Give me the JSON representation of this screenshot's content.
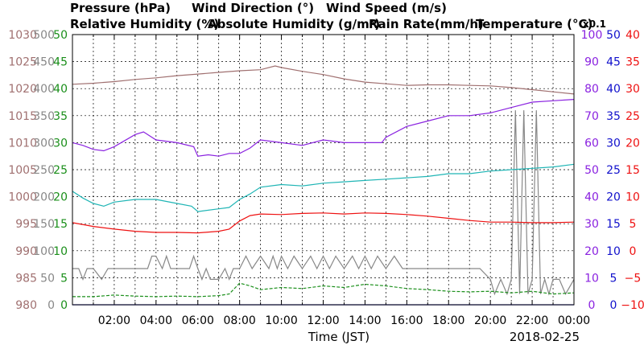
{
  "legend": {
    "pressure": "Pressure (hPa)",
    "wind_direction": "Wind Direction (°)",
    "wind_speed": "Wind Speed (m/s)",
    "relative_humidity": "Relative Humidity (%)",
    "absolute_humidity": "Absolute Humidity (g/m³)",
    "rain_rate": "Rain Rate(mm/h)",
    "temperature": "Temperature (°C)",
    "abs_humidity_scale": "x0.1"
  },
  "colors": {
    "pressure": "#a07070",
    "wind_direction": "#888888",
    "wind_speed": "#1a8f1a",
    "relative_humidity": "#8a22e0",
    "absolute_humidity": "#1fb5b5",
    "rain_rate": "#1111cc",
    "temperature": "#ee1111"
  },
  "chart_data": {
    "type": "line",
    "xlabel": "Time (JST)",
    "date": "2018-02-25",
    "x_ticks": [
      "02:00",
      "04:00",
      "06:00",
      "08:00",
      "10:00",
      "12:00",
      "14:00",
      "16:00",
      "18:00",
      "20:00",
      "22:00",
      "00:00"
    ],
    "xlim": [
      "00:00",
      "24:00"
    ],
    "grid": true,
    "axes": {
      "pressure": {
        "ticks": [
          "1030",
          "1025",
          "1020",
          "1015",
          "1010",
          "1005",
          "1000",
          "995",
          "990",
          "985",
          "980"
        ],
        "ylim": [
          980,
          1030
        ]
      },
      "wind_direction": {
        "ticks": [
          "500",
          "450",
          "400",
          "350",
          "300",
          "250",
          "200",
          "150",
          "100",
          "50",
          "0"
        ],
        "ylim": [
          0,
          500
        ]
      },
      "wind_speed": {
        "ticks": [
          "50",
          "45",
          "40",
          "35",
          "30",
          "25",
          "20",
          "15",
          "10",
          "5",
          "0"
        ],
        "ylim": [
          0,
          50
        ]
      },
      "humidity": {
        "ticks": [
          "100",
          "90",
          "80",
          "70",
          "60",
          "50",
          "40",
          "30",
          "20",
          "10",
          "0"
        ],
        "ylim": [
          0,
          100
        ]
      },
      "rain_rate": {
        "ticks": [
          "50",
          "45",
          "40",
          "35",
          "30",
          "25",
          "20",
          "15",
          "10",
          "5",
          "0"
        ],
        "ylim": [
          0,
          50
        ]
      },
      "temperature": {
        "ticks": [
          "40",
          "35",
          "30",
          "25",
          "20",
          "15",
          "10",
          "5",
          "0",
          "−5",
          "−10"
        ],
        "ylim": [
          -10,
          40
        ]
      }
    },
    "series": [
      {
        "name": "Pressure (hPa)",
        "key": "pressure",
        "axis": "pressure",
        "x": [
          0,
          1,
          2,
          3,
          4,
          5,
          6,
          7,
          8,
          9,
          9.7,
          10,
          11,
          12,
          13,
          14,
          15,
          16,
          17,
          18,
          19,
          20,
          21,
          22,
          23,
          24
        ],
        "y": [
          1020.8,
          1021.0,
          1021.3,
          1021.7,
          1022.0,
          1022.4,
          1022.7,
          1023.0,
          1023.3,
          1023.5,
          1024.2,
          1023.9,
          1023.2,
          1022.6,
          1021.8,
          1021.2,
          1020.9,
          1020.6,
          1020.7,
          1020.7,
          1020.6,
          1020.5,
          1020.2,
          1019.8,
          1019.4,
          1019.0
        ]
      },
      {
        "name": "Relative Humidity (%)",
        "key": "relative_humidity",
        "axis": "humidity",
        "x": [
          0,
          0.5,
          1,
          1.5,
          2,
          3,
          3.4,
          4,
          5,
          5.8,
          6,
          6.5,
          7,
          7.5,
          8,
          8.5,
          9,
          10,
          11,
          12,
          13,
          14,
          14.8,
          15,
          16,
          17,
          18,
          19,
          20,
          21,
          22,
          23,
          24
        ],
        "y": [
          60,
          59,
          57.5,
          57,
          58.5,
          63,
          64,
          61,
          60,
          58.5,
          55,
          55.5,
          55,
          56,
          56,
          58,
          61,
          60,
          59,
          61,
          60,
          60,
          60,
          62,
          66,
          68,
          70,
          70,
          71,
          73,
          75,
          75.5,
          76
        ]
      },
      {
        "name": "Absolute Humidity (g/m³)",
        "key": "absolute_humidity",
        "axis": "humidity",
        "x": [
          0,
          0.5,
          1,
          1.5,
          2,
          3,
          4,
          5,
          5.7,
          6,
          7,
          7.5,
          8,
          8.5,
          9,
          10,
          11,
          12,
          13,
          14,
          15,
          16,
          17,
          18,
          19,
          20,
          21,
          22,
          23,
          24
        ],
        "y": [
          42,
          39.5,
          37.5,
          36.5,
          38,
          39,
          39,
          37.5,
          36.5,
          34.5,
          35.5,
          36,
          39,
          41,
          43.5,
          44.5,
          44,
          45,
          45.5,
          46,
          46.5,
          47,
          47.5,
          48.5,
          48.5,
          49.5,
          50,
          50.5,
          51,
          52
        ]
      },
      {
        "name": "Temperature (°C)",
        "key": "temperature",
        "axis": "temperature",
        "x": [
          0,
          1,
          2,
          3,
          4,
          5,
          6,
          7,
          7.5,
          8,
          8.5,
          9,
          10,
          11,
          12,
          13,
          14,
          15,
          16,
          17,
          18,
          19,
          20,
          21,
          22,
          23,
          24
        ],
        "y": [
          5.2,
          4.5,
          4.0,
          3.6,
          3.4,
          3.4,
          3.3,
          3.6,
          4.0,
          5.5,
          6.5,
          6.8,
          6.7,
          6.9,
          7.0,
          6.8,
          7.0,
          6.9,
          6.7,
          6.4,
          6.0,
          5.6,
          5.3,
          5.3,
          5.2,
          5.2,
          5.3
        ]
      },
      {
        "name": "Wind Direction (°)",
        "key": "wind_direction",
        "axis": "wind_direction",
        "x": [
          0,
          0.3,
          0.5,
          0.7,
          1,
          1.4,
          1.7,
          2,
          3,
          3.6,
          3.8,
          4,
          4.3,
          4.5,
          4.7,
          5,
          5.6,
          5.8,
          6,
          6.2,
          6.4,
          6.6,
          7,
          7.3,
          7.5,
          7.7,
          8,
          8.3,
          8.6,
          9,
          9.4,
          9.6,
          9.8,
          10,
          10.3,
          10.6,
          11,
          11.4,
          11.7,
          12,
          12.3,
          12.6,
          13,
          13.4,
          13.7,
          14,
          14.3,
          14.6,
          15,
          15.4,
          15.8,
          16,
          16.5,
          17,
          17.5,
          18,
          18.5,
          19,
          19.5,
          20,
          20.2,
          20.5,
          20.8,
          21,
          21.2,
          21.4,
          21.6,
          21.8,
          22,
          22.2,
          22.4,
          22.6,
          22.8,
          23,
          23.3,
          23.6,
          24
        ],
        "y": [
          67,
          67,
          47,
          67,
          67,
          47,
          67,
          67,
          67,
          67,
          90,
          90,
          67,
          90,
          67,
          67,
          67,
          90,
          67,
          47,
          67,
          47,
          47,
          67,
          47,
          67,
          67,
          90,
          67,
          90,
          67,
          90,
          67,
          90,
          67,
          90,
          67,
          90,
          67,
          90,
          67,
          90,
          67,
          90,
          67,
          90,
          67,
          90,
          67,
          90,
          67,
          67,
          67,
          67,
          67,
          67,
          67,
          67,
          67,
          47,
          20,
          47,
          20,
          47,
          360,
          20,
          360,
          20,
          47,
          360,
          20,
          47,
          20,
          47,
          47,
          20,
          47
        ]
      },
      {
        "name": "Wind Speed (m/s)",
        "key": "wind_speed",
        "axis": "wind_speed",
        "x": [
          0,
          1,
          2,
          3,
          4,
          5,
          6,
          7,
          7.5,
          8,
          8.5,
          9,
          10,
          11,
          12,
          13,
          14,
          15,
          16,
          17,
          18,
          19,
          20,
          21,
          22,
          23,
          24
        ],
        "y": [
          1.5,
          1.5,
          1.8,
          1.6,
          1.5,
          1.6,
          1.5,
          1.7,
          2.0,
          4.0,
          3.5,
          2.8,
          3.2,
          3.0,
          3.5,
          3.2,
          3.8,
          3.5,
          3.0,
          2.8,
          2.5,
          2.4,
          2.5,
          2.2,
          2.5,
          2.0,
          2.2
        ]
      },
      {
        "name": "Rain Rate(mm/h)",
        "key": "rain_rate",
        "axis": "rain_rate",
        "x": [
          0,
          24
        ],
        "y": [
          0,
          0
        ]
      }
    ]
  }
}
